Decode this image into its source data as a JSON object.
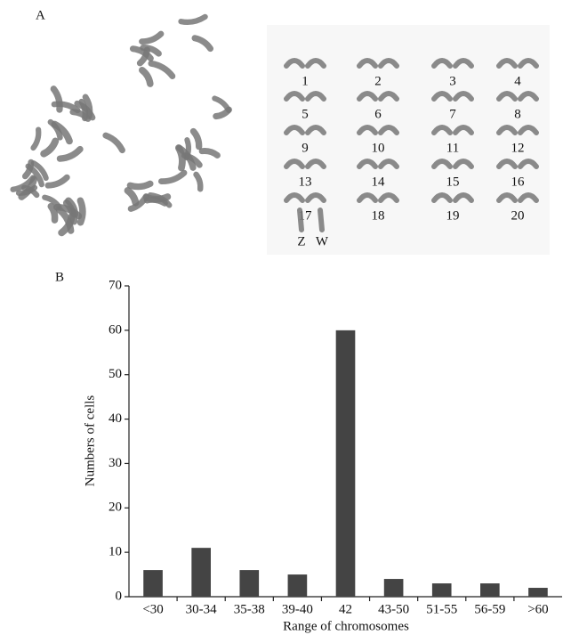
{
  "panel_a": {
    "label": "A",
    "chromosome_labels": [
      "1",
      "2",
      "3",
      "4",
      "5",
      "6",
      "7",
      "8",
      "9",
      "10",
      "11",
      "12",
      "13",
      "14",
      "15",
      "16",
      "17",
      "18",
      "19",
      "20"
    ],
    "sex_labels": [
      "Z",
      "W"
    ]
  },
  "chart_data": {
    "type": "bar",
    "panel_label": "B",
    "x_label": "Range of chromosomes",
    "y_label": "Numbers of cells",
    "categories": [
      "<30",
      "30-34",
      "35-38",
      "39-40",
      "42",
      "43-50",
      "51-55",
      "56-59",
      ">60"
    ],
    "values": [
      6,
      11,
      6,
      5,
      60,
      4,
      3,
      3,
      2
    ],
    "color": "#444444",
    "ylim": [
      0,
      70
    ],
    "yticks": [
      0,
      10,
      20,
      30,
      40,
      50,
      60,
      70
    ]
  }
}
